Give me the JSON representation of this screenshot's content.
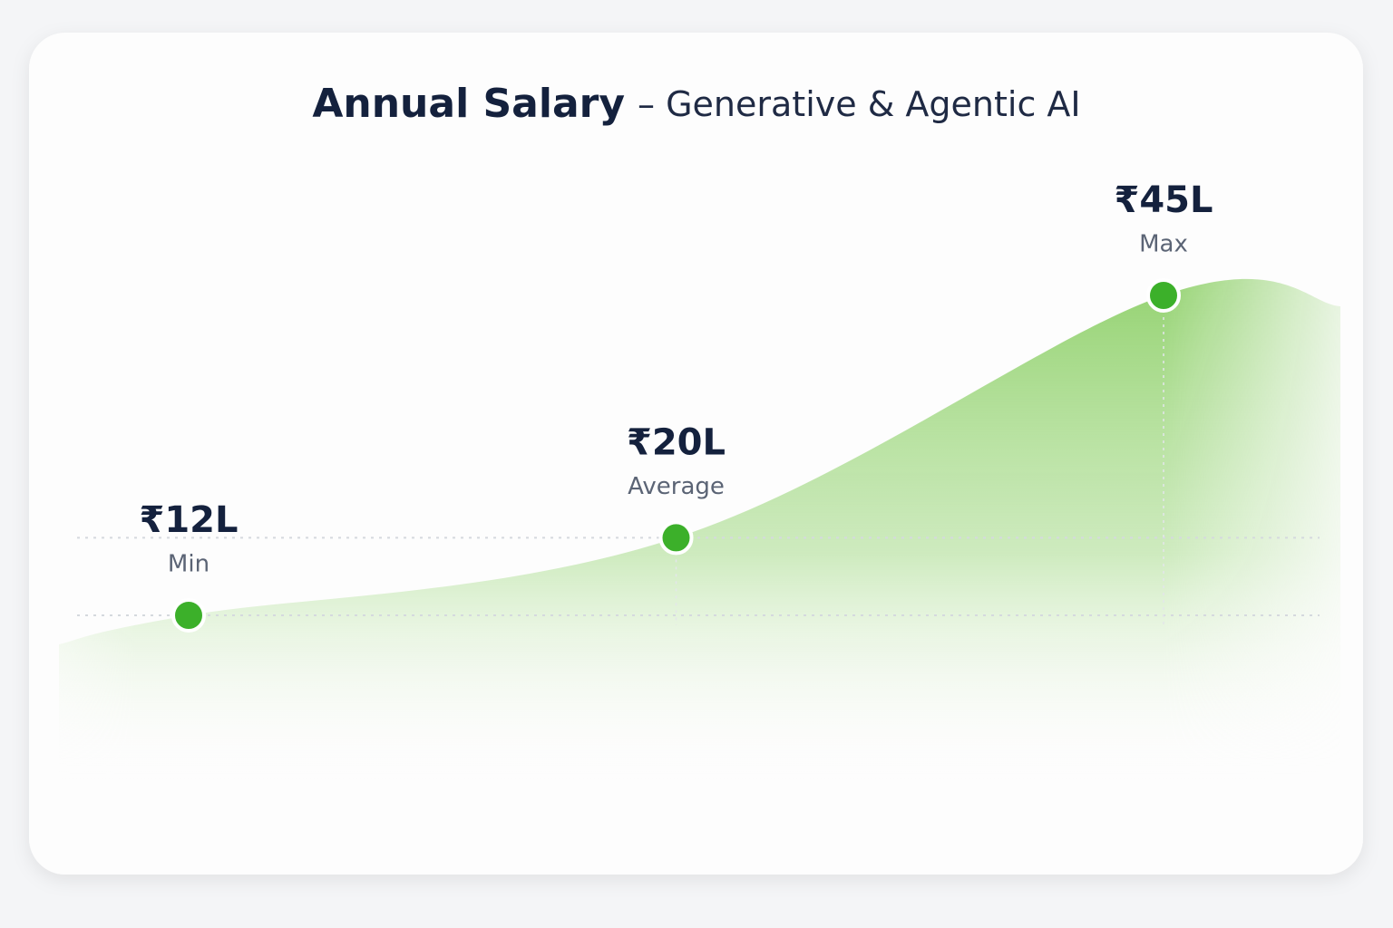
{
  "chart_data": {
    "type": "area",
    "title": "Annual Salary",
    "subtitle": "– Generative & Agentic AI",
    "categories": [
      "Min",
      "Average",
      "Max"
    ],
    "values": [
      12,
      20,
      45
    ],
    "value_labels": [
      "₹12L",
      "₹20L",
      "₹45L"
    ],
    "color": "#3cb02a"
  }
}
